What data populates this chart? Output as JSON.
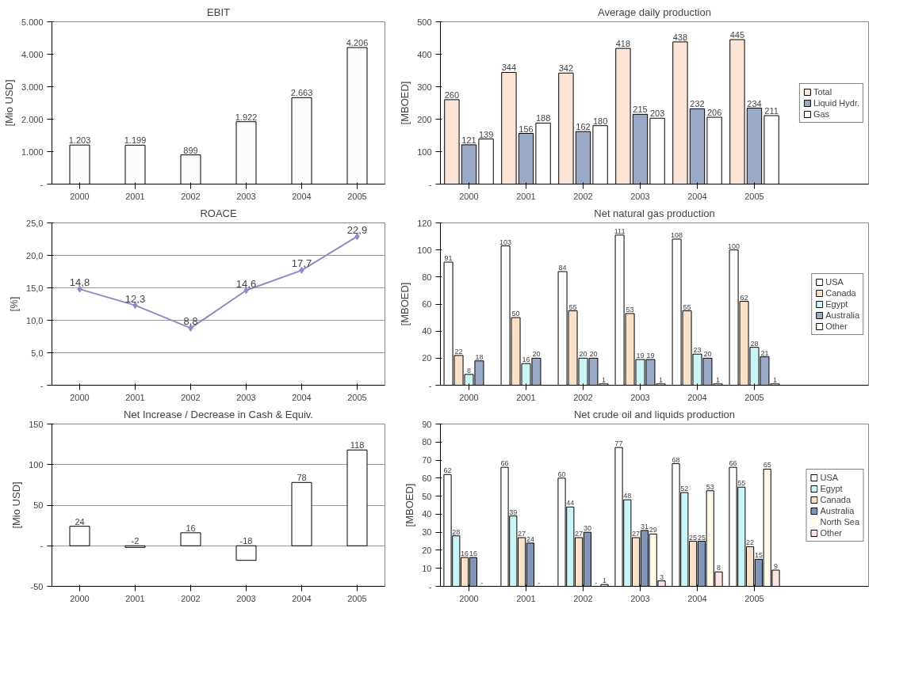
{
  "chart_data": [
    {
      "type": "bar",
      "title": "EBIT",
      "ylabel": "[Mio USD]",
      "categories": [
        "2000",
        "2001",
        "2002",
        "2003",
        "2004",
        "2005"
      ],
      "values": [
        1203,
        1199,
        899,
        1922,
        2663,
        4206
      ],
      "color": "#fcfcfc",
      "value_labels": [
        "1.203",
        "1.199",
        "899",
        "1.922",
        "2.663",
        "4.206"
      ],
      "ylim": [
        0,
        5000
      ],
      "yticks": [
        {
          "value": 0,
          "label": "-"
        },
        {
          "value": 1000,
          "label": "1.000"
        },
        {
          "value": 2000,
          "label": "2.000"
        },
        {
          "value": 3000,
          "label": "3.000"
        },
        {
          "value": 4000,
          "label": "4.000"
        },
        {
          "value": 5000,
          "label": "5.000"
        }
      ],
      "grid": false
    },
    {
      "type": "line",
      "title": "ROACE",
      "ylabel": "[%]",
      "categories": [
        "2000",
        "2001",
        "2002",
        "2003",
        "2004",
        "2005"
      ],
      "values": [
        14.8,
        12.3,
        8.8,
        14.6,
        17.7,
        22.9
      ],
      "color": "#8c8cc8",
      "marker": "diamond",
      "value_labels": [
        "14,8",
        "12,3",
        "8,8",
        "14,6",
        "17,7",
        "22,9"
      ],
      "ylim": [
        0,
        25
      ],
      "yticks": [
        {
          "value": 0,
          "label": "-"
        },
        {
          "value": 5,
          "label": "5,0"
        },
        {
          "value": 10,
          "label": "10,0"
        },
        {
          "value": 15,
          "label": "15,0"
        },
        {
          "value": 20,
          "label": "20,0"
        },
        {
          "value": 25,
          "label": "25,0"
        }
      ],
      "grid": "y"
    },
    {
      "type": "bar",
      "title": "Net Increase / Decrease in Cash & Equiv.",
      "ylabel": "[Mio USD]",
      "categories": [
        "2000",
        "2001",
        "2002",
        "2003",
        "2004",
        "2005"
      ],
      "values": [
        24,
        -2,
        16,
        -18,
        78,
        118
      ],
      "color": "#ffffff",
      "data_labels": true,
      "ylim": [
        -50,
        150
      ],
      "yticks": [
        -50,
        {
          "value": 0,
          "label": "-"
        },
        50,
        100,
        150
      ],
      "grid": "y"
    },
    {
      "type": "bar",
      "title": "Average daily production",
      "ylabel": "[MBOED]",
      "categories": [
        "2000",
        "2001",
        "2002",
        "2003",
        "2004",
        "2005"
      ],
      "data_labels": true,
      "legend": "right",
      "series": [
        {
          "name": "Total",
          "color": "#fbe5d6",
          "values": [
            260,
            344,
            342,
            418,
            438,
            445
          ]
        },
        {
          "name": "Liquid Hydr.",
          "color": "#9aaac8",
          "values": [
            121,
            156,
            162,
            215,
            232,
            234
          ]
        },
        {
          "name": "Gas",
          "color": "#ffffff",
          "values": [
            139,
            188,
            180,
            203,
            206,
            211
          ]
        }
      ],
      "ylim": [
        0,
        500
      ],
      "yticks": [
        {
          "value": 0,
          "label": "-"
        },
        100,
        200,
        300,
        400,
        500
      ],
      "grid": false
    },
    {
      "type": "bar",
      "title": "Net natural gas production",
      "ylabel": "[MBOED]",
      "categories": [
        "2000",
        "2001",
        "2002",
        "2003",
        "2004",
        "2005"
      ],
      "data_labels": true,
      "legend": "right",
      "series": [
        {
          "name": "USA",
          "color": "#ffffff",
          "values": [
            91,
            103,
            84,
            111,
            108,
            100
          ]
        },
        {
          "name": "Canada",
          "color": "#fbe0c8",
          "values": [
            22,
            50,
            55,
            53,
            55,
            62
          ]
        },
        {
          "name": "Egypt",
          "color": "#ccf5f5",
          "values": [
            8,
            16,
            20,
            19,
            23,
            28
          ]
        },
        {
          "name": "Australia",
          "color": "#9aaac8",
          "values": [
            18,
            20,
            20,
            19,
            20,
            21
          ]
        },
        {
          "name": "Other",
          "color": "#ffffff",
          "values": [
            null,
            null,
            1,
            1,
            1,
            1
          ]
        }
      ],
      "ylim": [
        0,
        120
      ],
      "yticks": [
        {
          "value": 0,
          "label": "-"
        },
        20,
        40,
        60,
        80,
        100,
        120
      ],
      "grid": false
    },
    {
      "type": "bar",
      "title": "Net crude oil and liquids production",
      "ylabel": "[MBOED]",
      "categories": [
        "2000",
        "2001",
        "2002",
        "2003",
        "2004",
        "2005"
      ],
      "data_labels": true,
      "legend": "right",
      "series": [
        {
          "name": "USA",
          "color": "#ffffff",
          "values": [
            62,
            66,
            60,
            77,
            68,
            66
          ]
        },
        {
          "name": "Egypt",
          "color": "#ccf5f5",
          "values": [
            28,
            39,
            44,
            48,
            52,
            55
          ]
        },
        {
          "name": "Canada",
          "color": "#fbe0c8",
          "values": [
            16,
            27,
            27,
            27,
            25,
            22
          ]
        },
        {
          "name": "Australia",
          "color": "#8096b8",
          "values": [
            16,
            24,
            30,
            31,
            25,
            15
          ]
        },
        {
          "name": "North Sea",
          "color": "#fffbe8",
          "values": [
            0,
            0,
            0,
            29,
            53,
            65
          ],
          "value_labels": [
            "-",
            "-",
            "-",
            "29",
            "53",
            "65"
          ]
        },
        {
          "name": "Other",
          "color": "#fce4e4",
          "values": [
            null,
            null,
            1,
            3,
            8,
            9
          ]
        }
      ],
      "ylim": [
        0,
        90
      ],
      "yticks": [
        {
          "value": 0,
          "label": "-"
        },
        10,
        20,
        30,
        40,
        50,
        60,
        70,
        80,
        90
      ],
      "grid": false
    }
  ]
}
